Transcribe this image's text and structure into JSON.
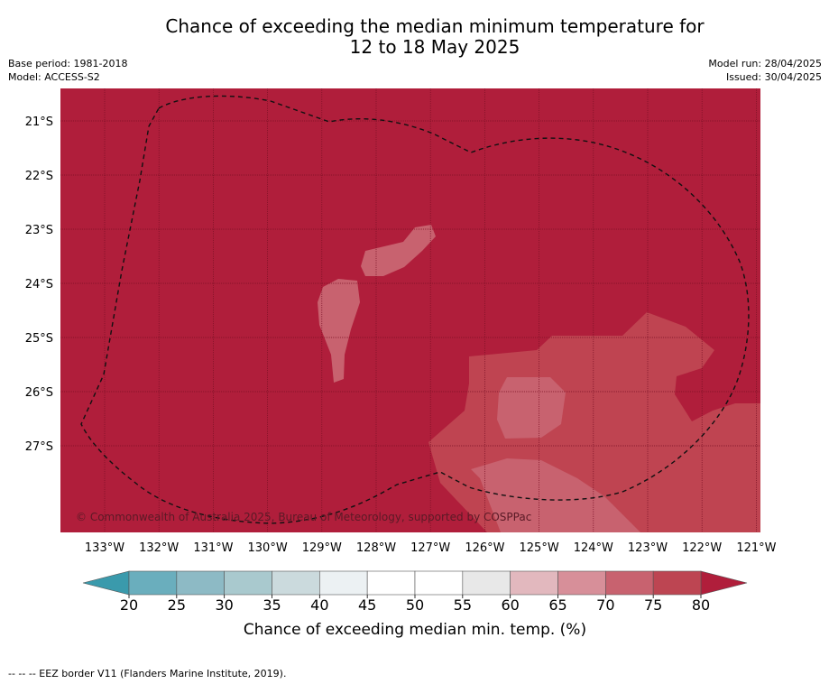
{
  "title_line1": "Chance of exceeding the median minimum temperature for",
  "title_line2": "12 to 18 May 2025",
  "base_period": "Base period: 1981-2018",
  "model": "Model: ACCESS-S2",
  "model_run": "Model run: 28/04/2025",
  "issued": "Issued: 30/04/2025",
  "copyright": "© Commonwealth of Australia 2025, Bureau of Meteorology, supported by COSPPac",
  "footnote": "--  --  -- EEZ border V11 (Flanders Marine Institute, 2019).",
  "longitude_labels": [
    "133°W",
    "132°W",
    "131°W",
    "130°W",
    "129°W",
    "128°W",
    "127°W",
    "126°W",
    "125°W",
    "124°W",
    "123°W",
    "122°W",
    "121°W"
  ],
  "latitude_labels": [
    "21°S",
    "22°S",
    "23°S",
    "24°S",
    "25°S",
    "26°S",
    "27°S"
  ],
  "colorbar": {
    "title": "Chance of exceeding median min. temp. (%)",
    "ticks": [
      "20",
      "25",
      "30",
      "35",
      "40",
      "45",
      "50",
      "55",
      "60",
      "65",
      "70",
      "75",
      "80"
    ],
    "colors": [
      "#6aaebd",
      "#8dbac5",
      "#a9c9ce",
      "#cbdadd",
      "#ecf1f3",
      "#ffffff",
      "#ffffff",
      "#e8e8e8",
      "#e2b8be",
      "#d78f99",
      "#c8626f",
      "#bd4552"
    ],
    "under_color": "#3a9aac",
    "over_color": "#b01e3b"
  },
  "map_colors": {
    "dominant": "#b01e3b",
    "class_75_80": "#bf4451",
    "class_70_75": "#c8626f"
  }
}
